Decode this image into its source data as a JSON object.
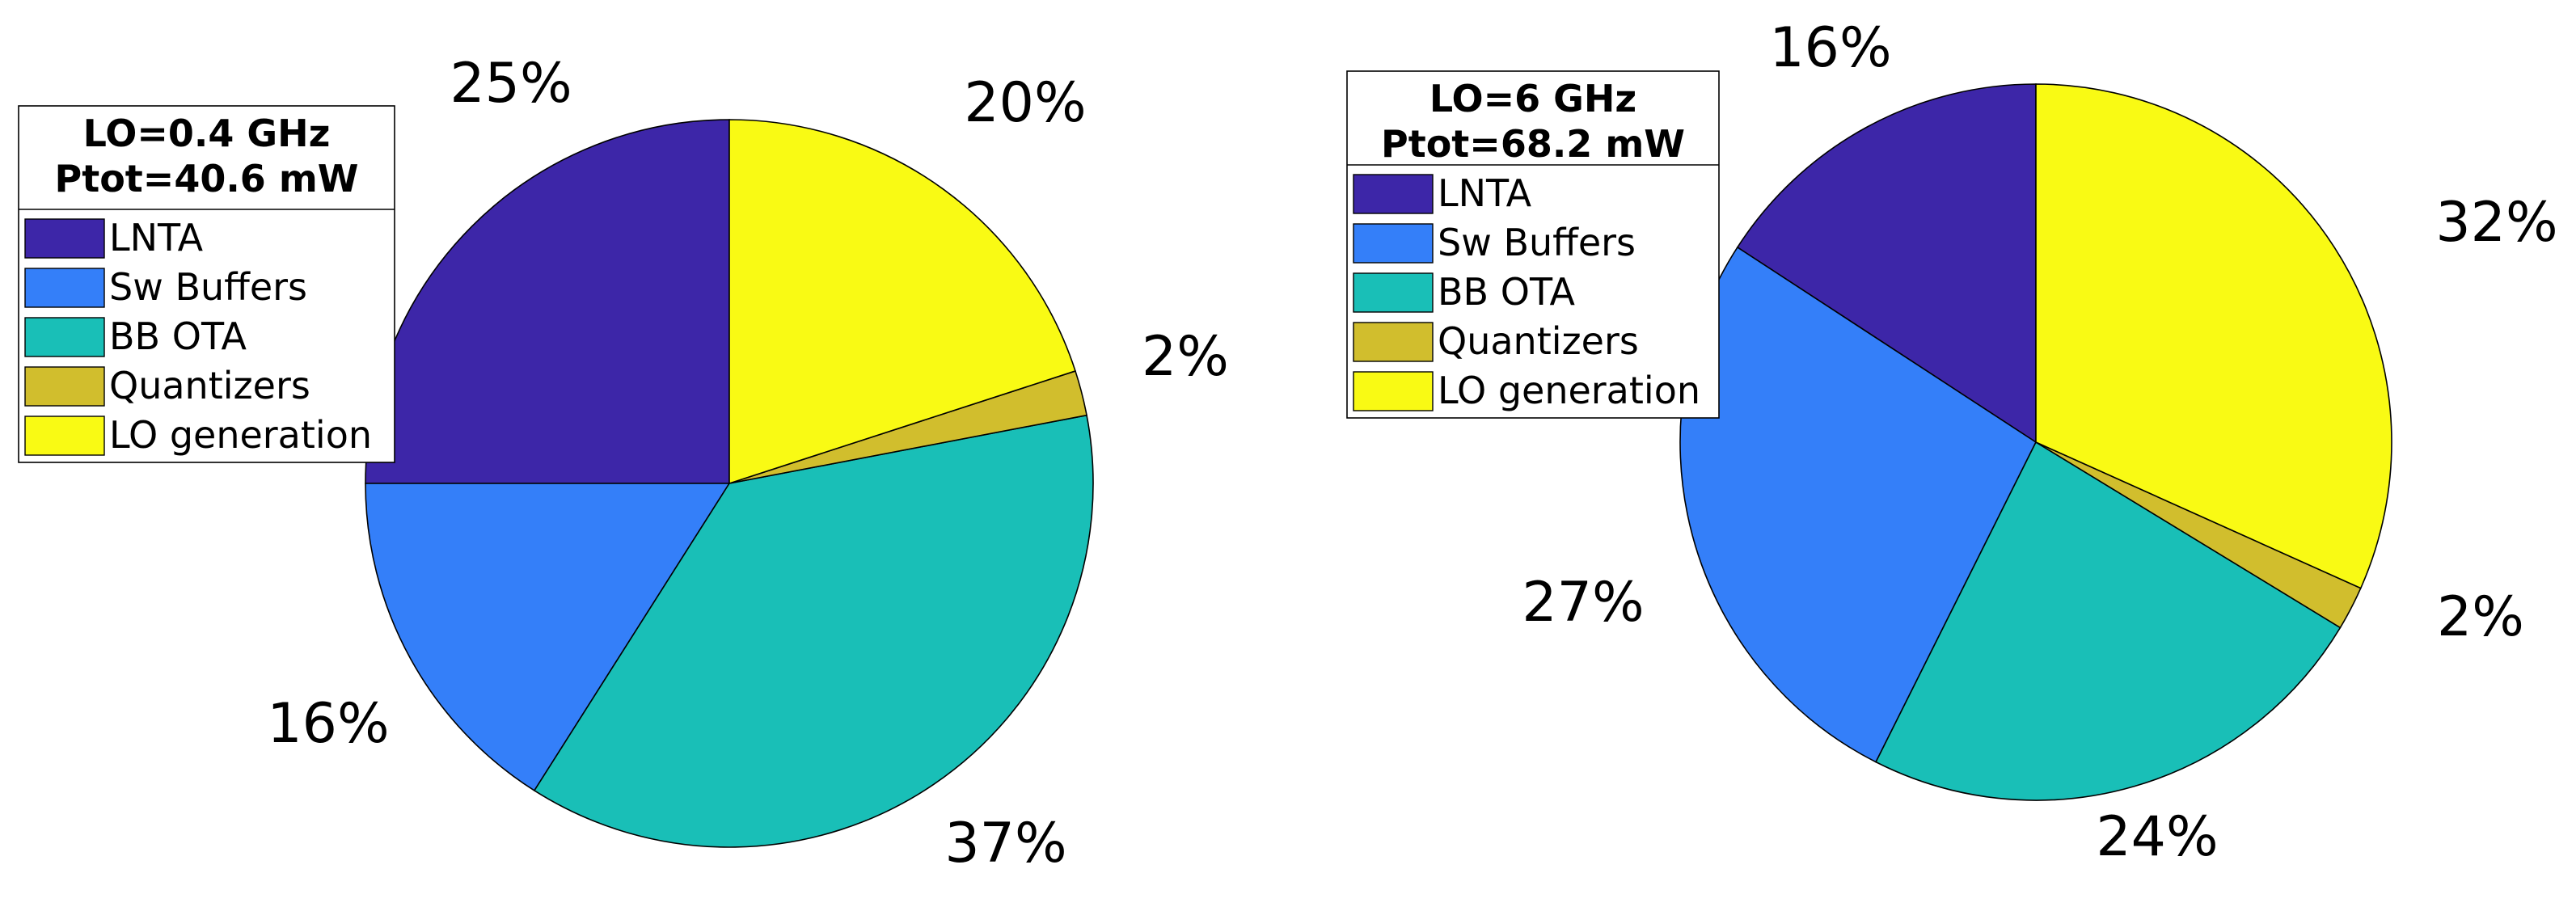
{
  "chart_data": [
    {
      "type": "pie",
      "legend_title": [
        "LO=0.4 GHz",
        "Ptot=40.6 mW"
      ],
      "categories": [
        "LNTA",
        "Sw Buffers",
        "BB OTA",
        "Quantizers",
        "LO generation"
      ],
      "values": [
        25,
        16,
        37,
        2,
        20
      ],
      "labels": [
        "25%",
        "16%",
        "37%",
        "2%",
        "20%"
      ],
      "colors": [
        "#3D26A8",
        "#347FF9",
        "#19BFB7",
        "#D1BE2D",
        "#F9FA14"
      ],
      "start": "top",
      "direction": "counterclockwise",
      "legend_position": "top-left"
    },
    {
      "type": "pie",
      "legend_title": [
        "LO=6 GHz",
        "Ptot=68.2 mW"
      ],
      "categories": [
        "LNTA",
        "Sw Buffers",
        "BB OTA",
        "Quantizers",
        "LO generation"
      ],
      "values": [
        16,
        27,
        24,
        2,
        32
      ],
      "labels": [
        "16%",
        "27%",
        "24%",
        "2%",
        "32%"
      ],
      "colors": [
        "#3D26A8",
        "#347FF9",
        "#19BFB7",
        "#D1BE2D",
        "#F9FA14"
      ],
      "start": "top",
      "direction": "counterclockwise",
      "legend_position": "top-left"
    }
  ]
}
